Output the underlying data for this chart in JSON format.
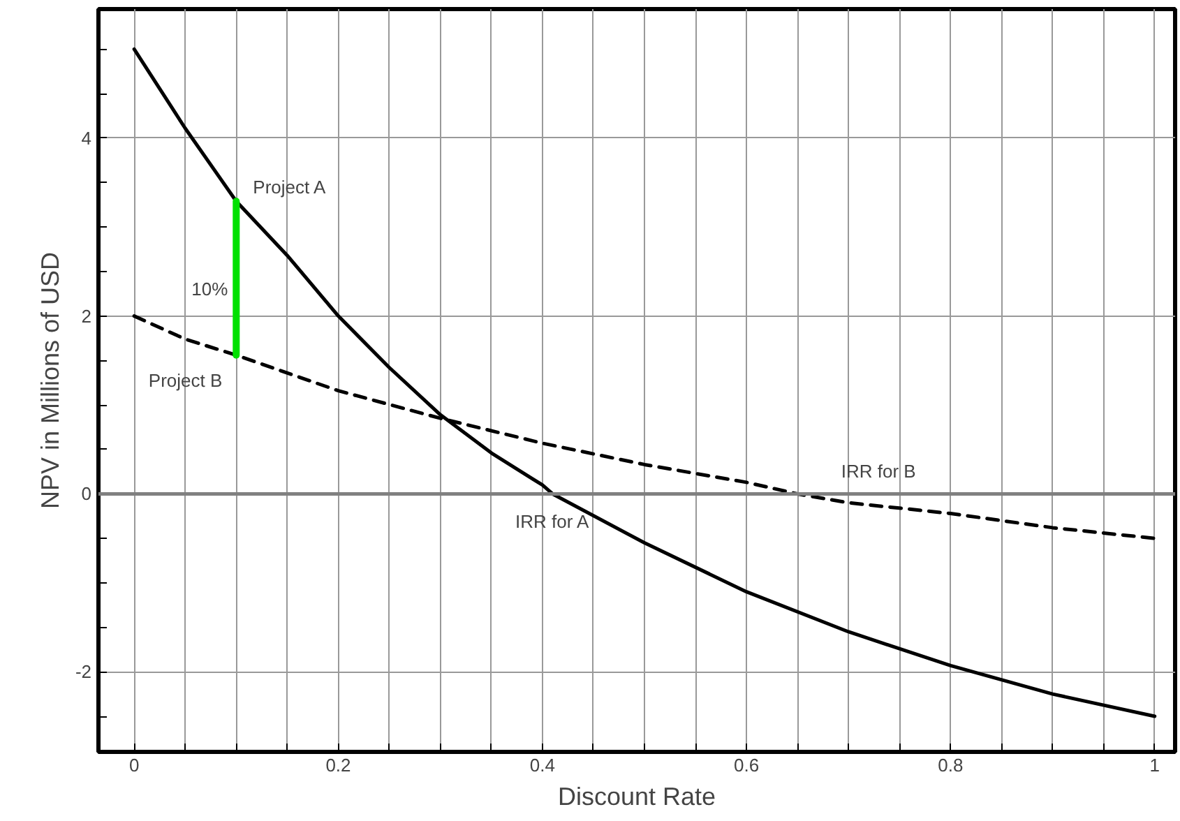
{
  "chart_data": {
    "type": "line",
    "xlabel": "Discount Rate",
    "ylabel": "NPV in Millions of USD",
    "xlim": [
      -0.035,
      1.02
    ],
    "ylim": [
      -2.9,
      5.45
    ],
    "xticks": [
      0,
      {
        "value": 0.05,
        "label": null
      },
      {
        "value": 0.1,
        "label": null
      },
      {
        "value": 0.15,
        "label": null
      },
      0.2,
      {
        "value": 0.25,
        "label": null
      },
      {
        "value": 0.3,
        "label": null
      },
      {
        "value": 0.35,
        "label": null
      },
      0.4,
      {
        "value": 0.45,
        "label": null
      },
      {
        "value": 0.5,
        "label": null
      },
      {
        "value": 0.55,
        "label": null
      },
      0.6,
      {
        "value": 0.65,
        "label": null
      },
      {
        "value": 0.7,
        "label": null
      },
      {
        "value": 0.75,
        "label": null
      },
      0.8,
      {
        "value": 0.85,
        "label": null
      },
      {
        "value": 0.9,
        "label": null
      },
      {
        "value": 0.95,
        "label": null
      },
      1
    ],
    "yticks": [
      {
        "value": -2.5,
        "label": null
      },
      -2,
      {
        "value": -1.5,
        "label": null
      },
      {
        "value": -1,
        "label": null
      },
      {
        "value": -0.5,
        "label": null
      },
      0,
      {
        "value": 0.5,
        "label": null
      },
      {
        "value": 1,
        "label": null
      },
      {
        "value": 1.5,
        "label": null
      },
      2,
      {
        "value": 2.5,
        "label": null
      },
      {
        "value": 3,
        "label": null
      },
      {
        "value": 3.5,
        "label": null
      },
      4,
      {
        "value": 4.5,
        "label": null
      },
      {
        "value": 5,
        "label": null
      }
    ],
    "grid": true,
    "x": [
      0,
      0.05,
      0.1,
      0.15,
      0.2,
      0.25,
      0.3,
      0.35,
      0.4,
      0.41,
      0.5,
      0.6,
      0.7,
      0.8,
      0.9,
      1.0
    ],
    "series": [
      {
        "color": "#000000",
        "line_style": "solid",
        "values": [
          5.0,
          4.11,
          3.29,
          2.68,
          2.0,
          1.42,
          0.89,
          0.46,
          0.1,
          0.0,
          -0.55,
          -1.1,
          -1.55,
          -1.93,
          -2.25,
          -2.5
        ]
      },
      {
        "color": "#000000",
        "line_style": "dashed",
        "x": [
          0,
          0.05,
          0.1,
          0.2,
          0.3,
          0.4,
          0.5,
          0.6,
          0.65,
          0.7,
          0.8,
          0.9,
          1.0
        ],
        "values": [
          2.0,
          1.74,
          1.56,
          1.16,
          0.85,
          0.57,
          0.33,
          0.13,
          0.0,
          -0.1,
          -0.22,
          -0.38,
          -0.5
        ]
      },
      {
        "color": "#00e000",
        "line_style": "solid",
        "x": [
          0.1,
          0.1
        ],
        "values": [
          1.56,
          3.29
        ]
      }
    ],
    "ref_lines": [
      {
        "axis": "y",
        "value": 0,
        "label": null,
        "color": "#808080"
      }
    ],
    "annotations": [
      {
        "text": "Project A",
        "x": 0.1,
        "y": 3.29
      },
      {
        "text": "10%",
        "x": 0.1,
        "y": 2.3
      },
      {
        "text": "Project B",
        "x": 0.1,
        "y": 1.56
      },
      {
        "text": "IRR for A",
        "x": 0.41,
        "y": 0
      },
      {
        "text": "IRR for B",
        "x": 0.65,
        "y": 0
      }
    ]
  }
}
